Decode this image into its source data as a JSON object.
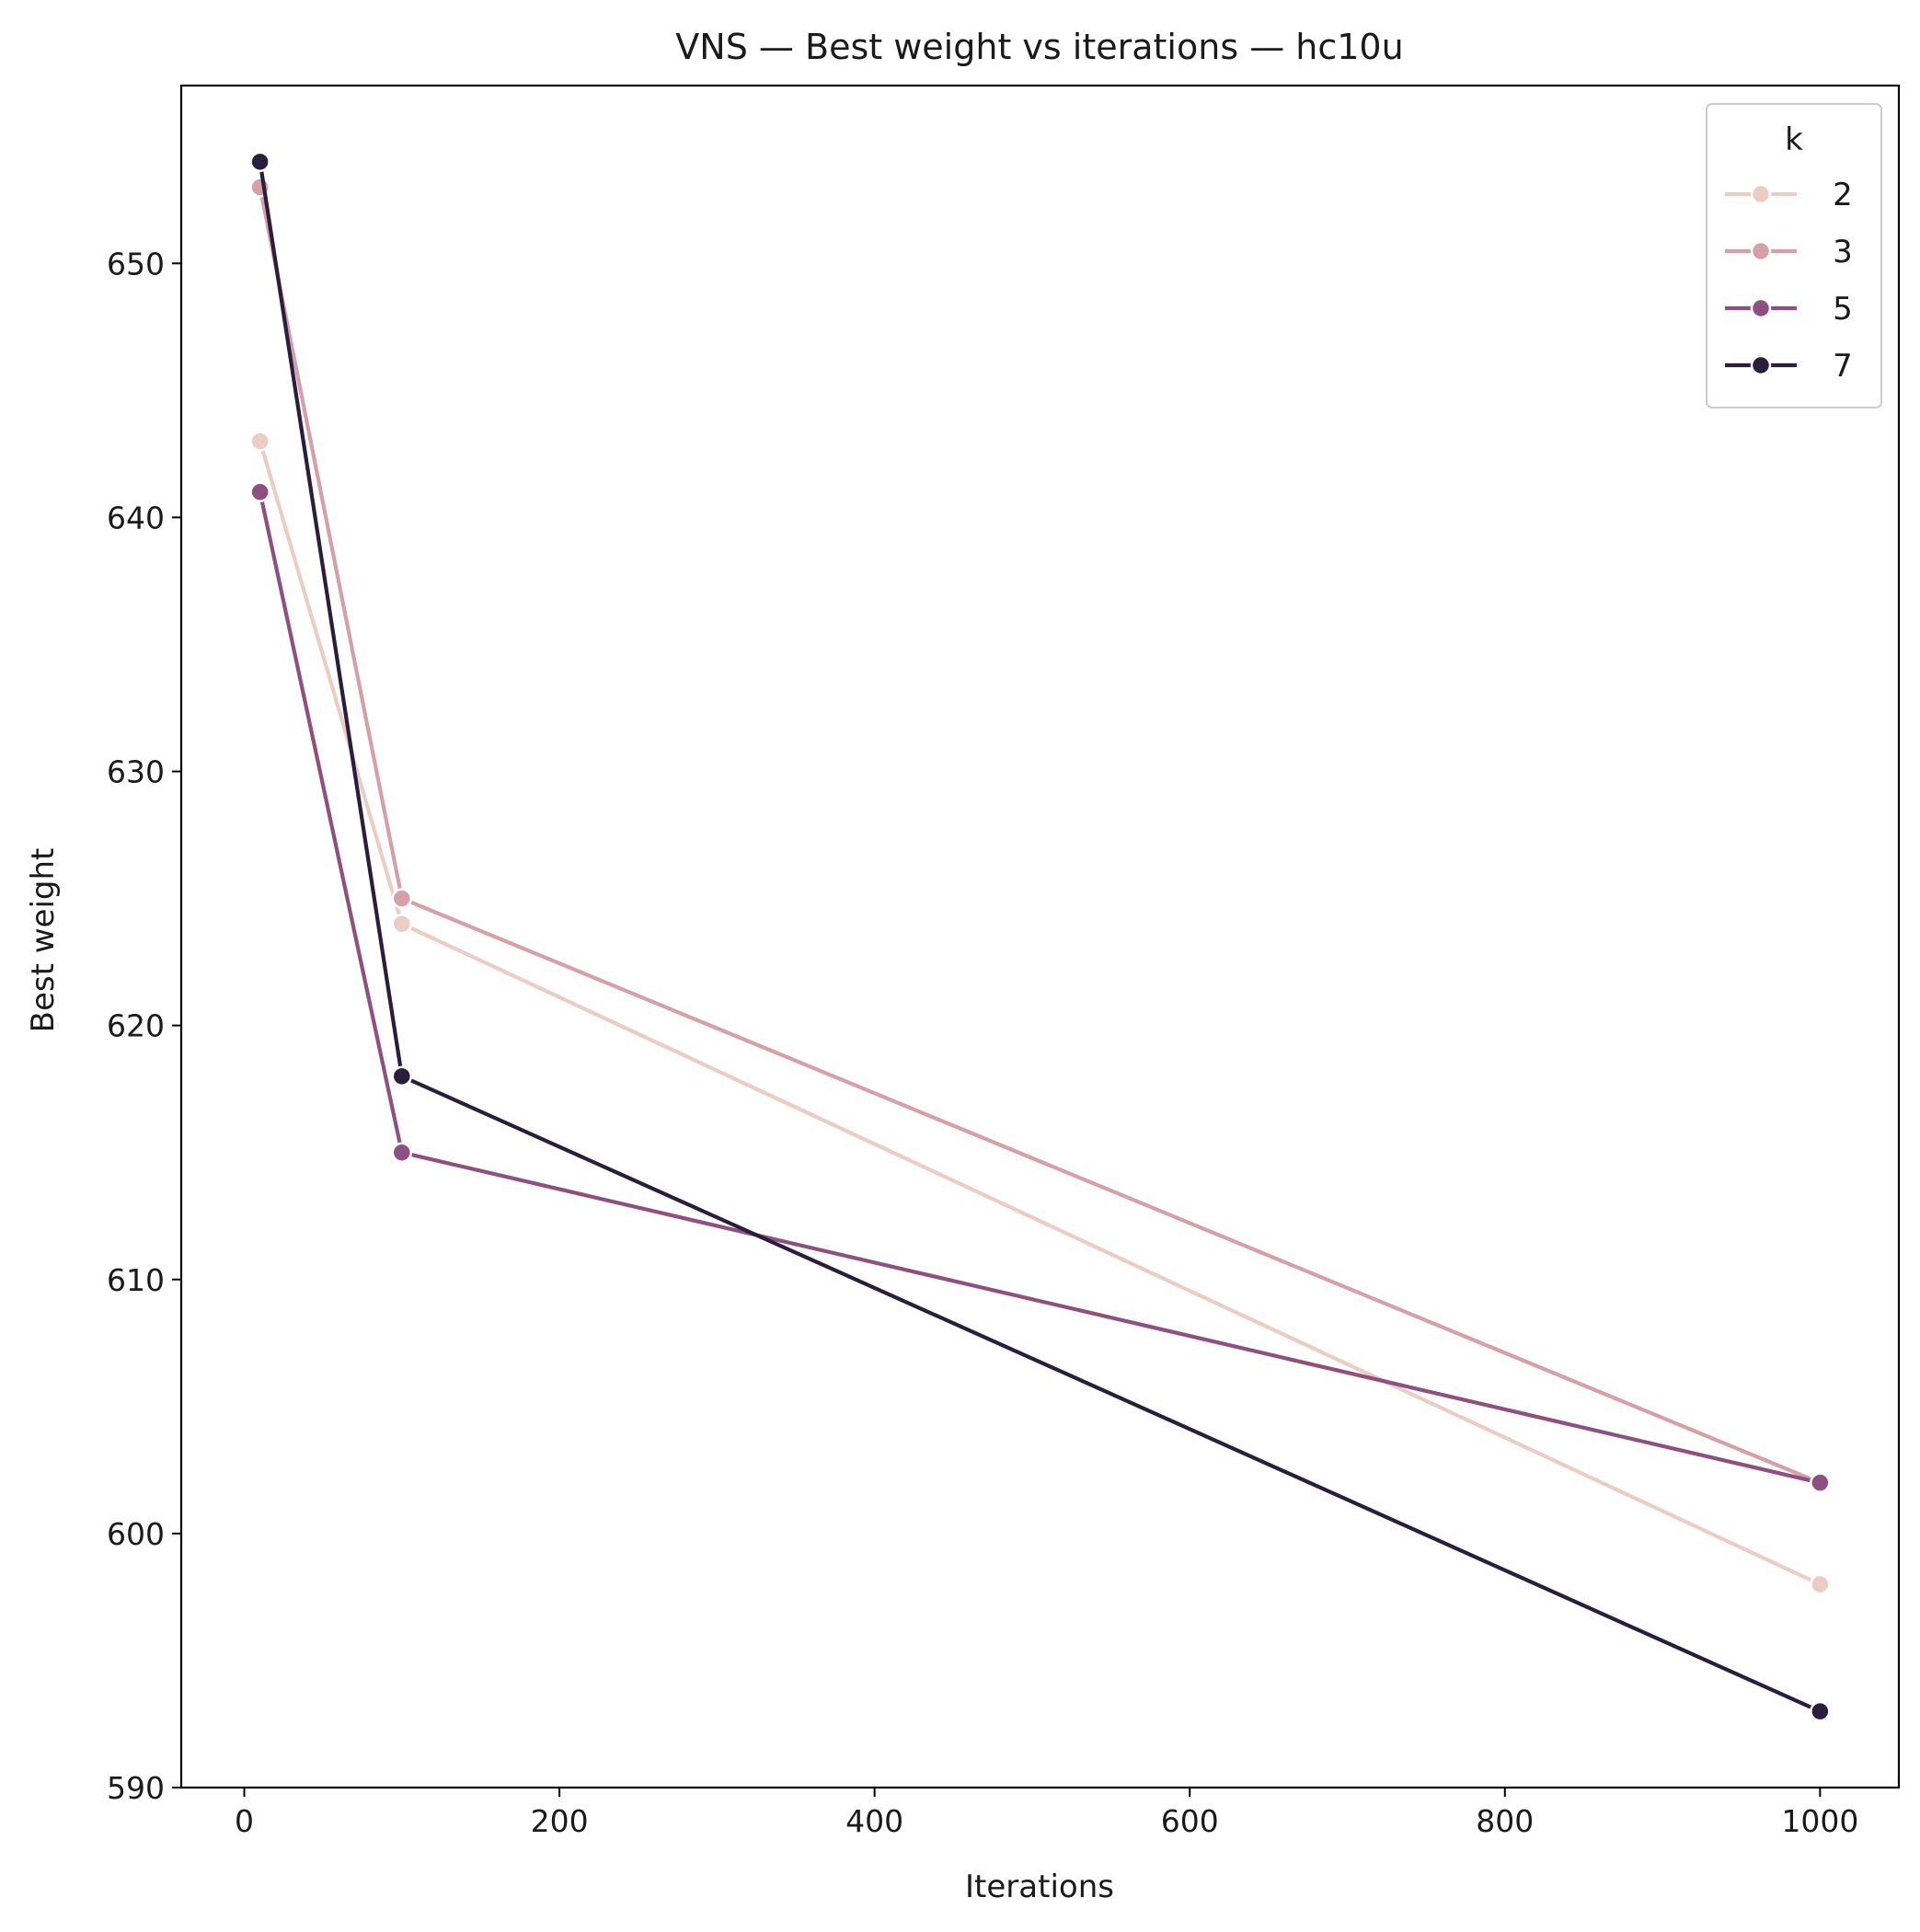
{
  "chart_data": {
    "type": "line",
    "title": "VNS — Best weight vs iterations — hc10u",
    "xlabel": "Iterations",
    "ylabel": "Best weight",
    "xlim": [
      -40,
      1050
    ],
    "ylim": [
      590,
      657
    ],
    "xticks": [
      0,
      200,
      400,
      600,
      800,
      1000
    ],
    "yticks": [
      590,
      600,
      610,
      620,
      630,
      640,
      650
    ],
    "x": [
      10,
      100,
      1000
    ],
    "grid": false,
    "legend": {
      "title": "k",
      "placement": "top-right"
    },
    "series": [
      {
        "name": "2",
        "color": "#ebcdc3",
        "values": [
          643,
          624,
          598
        ]
      },
      {
        "name": "3",
        "color": "#d6a0a8",
        "values": [
          653,
          625,
          602
        ]
      },
      {
        "name": "5",
        "color": "#8e5080",
        "values": [
          641,
          615,
          602
        ]
      },
      {
        "name": "7",
        "color": "#2b1d3c",
        "values": [
          654,
          618,
          593
        ]
      }
    ]
  }
}
